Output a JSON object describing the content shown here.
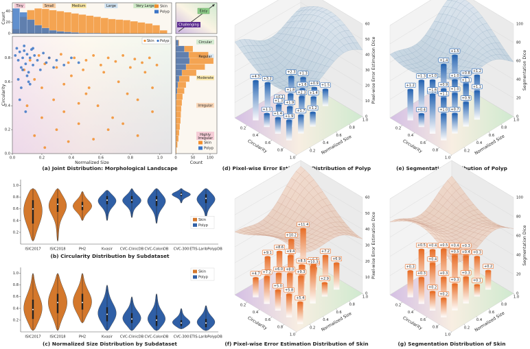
{
  "chart_data": [
    {
      "type": "scatter",
      "caption": "(a) Joint Distribution: Morphological Landscape",
      "xlabel": "Normalized Size",
      "ylabel": "Circularity",
      "xlim": [
        0,
        1.08
      ],
      "ylim": [
        0,
        0.98
      ],
      "xticks": [
        {
          "value": 0,
          "label": "0.0"
        },
        0.2,
        0.4,
        0.6,
        0.8,
        {
          "value": 1,
          "label": "1.0"
        }
      ],
      "yticks": [
        {
          "value": 0,
          "label": "0.0"
        },
        0.2,
        0.4,
        0.6,
        0.8
      ],
      "legend": "upper right",
      "series": [
        {
          "name": "Skin",
          "color": "#f28e2b",
          "x": [
            0.08,
            0.12,
            0.15,
            0.18,
            0.2,
            0.22,
            0.25,
            0.28,
            0.3,
            0.33,
            0.35,
            0.38,
            0.4,
            0.42,
            0.45,
            0.48,
            0.5,
            0.52,
            0.55,
            0.58,
            0.6,
            0.62,
            0.65,
            0.68,
            0.7,
            0.72,
            0.75,
            0.78,
            0.8,
            0.83,
            0.85,
            0.88,
            0.9,
            0.93,
            0.95,
            0.98,
            0.15,
            0.22,
            0.3,
            0.38,
            0.45,
            0.55,
            0.65,
            0.75,
            0.85,
            0.95,
            0.1,
            0.2,
            0.35,
            0.5
          ],
          "values": [
            0.7,
            0.78,
            0.62,
            0.82,
            0.55,
            0.75,
            0.8,
            0.45,
            0.72,
            0.83,
            0.35,
            0.76,
            0.65,
            0.8,
            0.25,
            0.7,
            0.78,
            0.55,
            0.82,
            0.4,
            0.74,
            0.68,
            0.8,
            0.3,
            0.77,
            0.6,
            0.82,
            0.5,
            0.72,
            0.79,
            0.45,
            0.76,
            0.68,
            0.8,
            0.35,
            0.74,
            0.15,
            0.05,
            0.2,
            0.1,
            0.42,
            0.12,
            0.2,
            0.25,
            0.15,
            0.55,
            0.4,
            0.3,
            0.58,
            0.5
          ]
        },
        {
          "name": "Polyp",
          "color": "#3b75c6",
          "x": [
            0.02,
            0.03,
            0.04,
            0.05,
            0.06,
            0.07,
            0.08,
            0.09,
            0.1,
            0.11,
            0.12,
            0.13,
            0.14,
            0.15,
            0.17,
            0.19,
            0.21,
            0.23,
            0.25,
            0.28,
            0.3,
            0.35,
            0.04,
            0.06,
            0.08,
            0.1,
            0.12,
            0.14,
            0.05,
            0.07,
            0.09,
            0.11,
            0.4,
            0.45
          ],
          "values": [
            0.82,
            0.88,
            0.78,
            0.85,
            0.72,
            0.8,
            0.86,
            0.75,
            0.83,
            0.68,
            0.8,
            0.87,
            0.74,
            0.82,
            0.78,
            0.7,
            0.84,
            0.76,
            0.8,
            0.72,
            0.78,
            0.74,
            0.62,
            0.55,
            0.9,
            0.65,
            0.58,
            0.88,
            0.45,
            0.7,
            0.35,
            0.6,
            0.8,
            0.76
          ]
        }
      ],
      "size_labels": [
        "Tiny",
        "Small",
        "Medium",
        "Large",
        "Very Large"
      ],
      "circularity_labels": [
        "Circular",
        "Regular",
        "Moderate",
        "Irregular",
        "Highly Irregular"
      ],
      "inset_labels": [
        "Easy",
        "Challenging"
      ],
      "top_histogram": {
        "ylabel": "Count",
        "ylim": [
          0,
          55
        ],
        "yticks": [
          0,
          20,
          40
        ],
        "bins": [
          0,
          0.05,
          0.1,
          0.15,
          0.2,
          0.25,
          0.3,
          0.35,
          0.4,
          0.45,
          0.5,
          0.55,
          0.6,
          0.65,
          0.7,
          0.75,
          0.8,
          0.85,
          0.9,
          0.95,
          1.0,
          1.05
        ],
        "series": [
          {
            "name": "Skin",
            "color": "#f28e2b",
            "values": [
              8,
              30,
              42,
              45,
              44,
              42,
              40,
              38,
              36,
              34,
              32,
              30,
              28,
              26,
              25,
              24,
              22,
              20,
              18,
              15,
              6
            ]
          },
          {
            "name": "Polyp",
            "color": "#3b75c6",
            "values": [
              45,
              38,
              25,
              15,
              10,
              6,
              4,
              3,
              2,
              1,
              1,
              1,
              0,
              0,
              0,
              0,
              0,
              0,
              0,
              0,
              0
            ]
          }
        ]
      },
      "right_histogram": {
        "xlabel": "Count",
        "xlim": [
          0,
          120
        ],
        "xticks": [
          0,
          50,
          100
        ],
        "bins": [
          0,
          0.05,
          0.1,
          0.15,
          0.2,
          0.25,
          0.3,
          0.35,
          0.4,
          0.45,
          0.5,
          0.55,
          0.6,
          0.65,
          0.7,
          0.75,
          0.8,
          0.85,
          0.9,
          0.95
        ],
        "series": [
          {
            "name": "Skin",
            "color": "#f28e2b",
            "values": [
              2,
              5,
              8,
              10,
              12,
              14,
              15,
              16,
              18,
              20,
              25,
              30,
              40,
              60,
              85,
              110,
              95,
              50,
              10
            ]
          },
          {
            "name": "Polyp",
            "color": "#3b75c6",
            "values": [
              0,
              0,
              0,
              0,
              0,
              0,
              0,
              0,
              1,
              2,
              4,
              6,
              10,
              18,
              30,
              40,
              38,
              25,
              8
            ]
          }
        ]
      }
    },
    {
      "type": "violin",
      "caption": "(b) Circularity Distribution by Subdataset",
      "categories": [
        "ISIC2017",
        "ISIC2018",
        "PH2",
        "Kvasir",
        "CVC-ClinicDB",
        "CVC-ColonDB",
        "CVC-300",
        "ETIS-LaribPolypDB"
      ],
      "ylim": [
        0,
        1.1
      ],
      "yticks": [
        0.2,
        0.4,
        0.6,
        0.8,
        {
          "value": 1,
          "label": "1.0"
        }
      ],
      "legend": "center right",
      "series": [
        {
          "name": "Skin",
          "color": "#d4782c",
          "values": [
            0.6,
            0.68,
            0.65,
            null,
            null,
            null,
            null,
            null
          ],
          "q1": [
            0.35,
            0.55,
            0.58,
            null,
            null,
            null,
            null,
            null
          ],
          "q3": [
            0.75,
            0.78,
            0.72,
            null,
            null,
            null,
            null,
            null
          ],
          "min": [
            0.05,
            0.05,
            0.4,
            null,
            null,
            null,
            null,
            null
          ],
          "max": [
            0.95,
            0.95,
            0.9,
            null,
            null,
            null,
            null,
            null
          ]
        },
        {
          "name": "Polyp",
          "color": "#2f5fa6",
          "values": [
            null,
            null,
            null,
            0.75,
            0.75,
            0.75,
            0.85,
            0.78
          ],
          "q1": [
            null,
            null,
            null,
            0.68,
            0.7,
            0.65,
            0.82,
            0.7
          ],
          "q3": [
            null,
            null,
            null,
            0.82,
            0.82,
            0.82,
            0.88,
            0.85
          ],
          "min": [
            null,
            null,
            null,
            0.4,
            0.45,
            0.35,
            0.7,
            0.45
          ],
          "max": [
            null,
            null,
            null,
            0.92,
            0.95,
            0.95,
            0.95,
            0.95
          ]
        }
      ]
    },
    {
      "type": "violin",
      "caption": "(c) Normalized Size Distribution by Subdataset",
      "categories": [
        "ISIC2017",
        "ISIC2018",
        "PH2",
        "Kvasir",
        "CVC-ClinicDB",
        "CVC-ColonDB",
        "CVC-300",
        "ETIS-LaribPolypDB"
      ],
      "ylim": [
        0,
        1.1
      ],
      "yticks": [
        0.2,
        0.4,
        0.6,
        0.8,
        {
          "value": 1,
          "label": "1.0"
        }
      ],
      "legend": "upper right",
      "series": [
        {
          "name": "Skin",
          "color": "#d4782c",
          "values": [
            0.38,
            0.5,
            0.5,
            null,
            null,
            null,
            null,
            null
          ],
          "q1": [
            0.22,
            0.32,
            0.38,
            null,
            null,
            null,
            null,
            null
          ],
          "q3": [
            0.55,
            0.65,
            0.65,
            null,
            null,
            null,
            null,
            null
          ],
          "min": [
            0.02,
            0.02,
            0.15,
            null,
            null,
            null,
            null,
            null
          ],
          "max": [
            1,
            1,
            1,
            null,
            null,
            null,
            null,
            null
          ]
        },
        {
          "name": "Polyp",
          "color": "#2f5fa6",
          "values": [
            null,
            null,
            null,
            0.3,
            0.22,
            0.2,
            0.15,
            0.15
          ],
          "q1": [
            null,
            null,
            null,
            0.18,
            0.15,
            0.1,
            0.1,
            0.08
          ],
          "q3": [
            null,
            null,
            null,
            0.42,
            0.32,
            0.28,
            0.2,
            0.22
          ],
          "min": [
            null,
            null,
            null,
            0.02,
            0.02,
            0.02,
            0.05,
            0.02
          ],
          "max": [
            null,
            null,
            null,
            0.8,
            0.6,
            0.65,
            0.4,
            0.45
          ]
        }
      ]
    },
    {
      "type": "bar3d",
      "caption": "(d) Pixel-wise Error Estimation Distribution of Polyp",
      "xlabel": "Circularity",
      "ylabel": "Normalized Size",
      "zlabel": "Pixel-wise Error Estimation Dice",
      "xlim": [
        0,
        1
      ],
      "ylim": [
        0,
        1
      ],
      "zlim": [
        0,
        60
      ],
      "xticks": [
        0.2,
        0.4,
        0.6,
        0.8,
        {
          "value": 1,
          "label": "1.0"
        }
      ],
      "yticks": [
        0.2,
        0.4,
        0.6,
        0.8,
        {
          "value": 1,
          "label": "1.0"
        }
      ],
      "zticks": [
        0,
        10,
        20,
        30,
        40,
        50,
        60
      ],
      "color": "#2a67b3",
      "values": [
        4.3,
        3.2,
        0.1,
        2.3,
        1.3,
        1.1,
        1.3,
        1.8,
        1.6,
        0.9,
        1.4,
        1.9,
        2.3,
        1.4,
        1.5,
        1.9,
        1.7,
        1.2
      ],
      "value_labels": [
        "+4.3",
        "+3.2",
        "+0.1",
        "+2.3",
        "+1.3",
        "+1.1",
        "+1.3",
        "+1.8",
        "+1.6",
        "+0.9",
        "+1.4",
        "+1.9",
        "+2.3",
        "+1.4",
        "+1.5",
        "+1.9",
        "+1.7",
        "+1.2"
      ]
    },
    {
      "type": "bar3d",
      "caption": "(e) Segmentation Distribution of Polyp",
      "xlabel": "Circularity",
      "ylabel": "Normalized Size",
      "zlabel": "Segmentation Dice",
      "xlim": [
        0,
        1
      ],
      "ylim": [
        0,
        1
      ],
      "zlim": [
        0,
        100
      ],
      "xticks": [
        0.2,
        0.4,
        0.6,
        0.8,
        {
          "value": 1,
          "label": "1.0"
        }
      ],
      "yticks": [
        0.2,
        0.4,
        0.6,
        0.8,
        {
          "value": 1,
          "label": "1.0"
        }
      ],
      "zticks": [
        0,
        20,
        40,
        60,
        80,
        100
      ],
      "color": "#2a67b3",
      "values": [
        1.2,
        1.3,
        1,
        1.4,
        1.5,
        0.4,
        0.9,
        0.9,
        1,
        0.8,
        1.6,
        1.1,
        1,
        1.1,
        1.2,
        1,
        0.7,
        0.9,
        1.1
      ],
      "value_labels": [
        "+1.2",
        "+1.3",
        "+1.0",
        "+1.4",
        "+1.5",
        "+0.4",
        "+0.9",
        "+0.9",
        "+1.0",
        "+0.8",
        "+1.6",
        "+1.1",
        "+1.0",
        "+1.1",
        "+1.2",
        "+1.0",
        "+0.7",
        "+0.9",
        "+1.1"
      ]
    },
    {
      "type": "bar3d",
      "caption": "(f) Pixel-wise Error Estimation Distribution of Skin",
      "xlabel": "Circularity",
      "ylabel": "Normalized Size",
      "zlabel": "Pixel-wise Error Estimation Dice",
      "xlim": [
        0,
        1
      ],
      "ylim": [
        0,
        1
      ],
      "zlim": [
        0,
        60
      ],
      "xticks": [
        0.2,
        0.4,
        0.6,
        0.8,
        {
          "value": 1,
          "label": "1.0"
        }
      ],
      "yticks": [
        0.2,
        0.4,
        0.6,
        0.8,
        {
          "value": 1,
          "label": "1.0"
        }
      ],
      "zticks": [
        0,
        10,
        20,
        30,
        40,
        50,
        60
      ],
      "color": "#e8702a",
      "values": [
        4.7,
        9.1,
        8.6,
        10.2,
        11.4,
        7.2,
        6,
        9.4,
        4.2,
        1.4,
        5,
        8,
        8.5,
        6.7,
        7.2,
        5.8,
        9.3,
        10.3,
        2.9,
        6.9,
        5.4
      ],
      "value_labels": [
        "+4.7",
        "+9.1",
        "+8.6",
        "+10.2",
        "+11.4",
        "+7.2",
        "+6.0",
        "+9.4",
        "+4.2",
        "+1.4",
        "+5.0",
        "+8.0",
        "+8.5",
        "+6.7",
        "+7.2",
        "+5.8",
        "+9.3",
        "+10.3",
        "+2.9",
        "+6.9",
        "+5.4"
      ]
    },
    {
      "type": "bar3d",
      "caption": "(g) Segmentation Distribution of Skin",
      "xlabel": "Circularity",
      "ylabel": "Normalized Size",
      "zlabel": "Segmentation Dice",
      "xlim": [
        0,
        1
      ],
      "ylim": [
        0,
        1
      ],
      "zlim": [
        0,
        100
      ],
      "xticks": [
        0.2,
        0.4,
        0.6,
        0.8,
        {
          "value": 1,
          "label": "1.0"
        }
      ],
      "yticks": [
        0.2,
        0.4,
        0.6,
        0.8,
        {
          "value": 1,
          "label": "1.0"
        }
      ],
      "zticks": [
        0,
        20,
        40,
        60,
        80,
        100
      ],
      "color": "#e8702a",
      "values": [
        0.3,
        0.5,
        0.4,
        0.3,
        0.2,
        0.3,
        0.4,
        0.5,
        0.4,
        0.3,
        0.2,
        0.3,
        0.5,
        0.4,
        0.3,
        0.2,
        0.3,
        0.3,
        0.1,
        0.2
      ],
      "value_labels": [
        "+0.3",
        "+0.5",
        "+0.4",
        "+0.3",
        "+0.2",
        "+0.3",
        "+0.4",
        "+0.5",
        "+0.4",
        "+0.3",
        "+0.2",
        "+0.3",
        "+0.5",
        "+0.4",
        "+0.3",
        "+0.2",
        "+0.3",
        "+0.3",
        "+0.1",
        "+0.2"
      ]
    }
  ]
}
